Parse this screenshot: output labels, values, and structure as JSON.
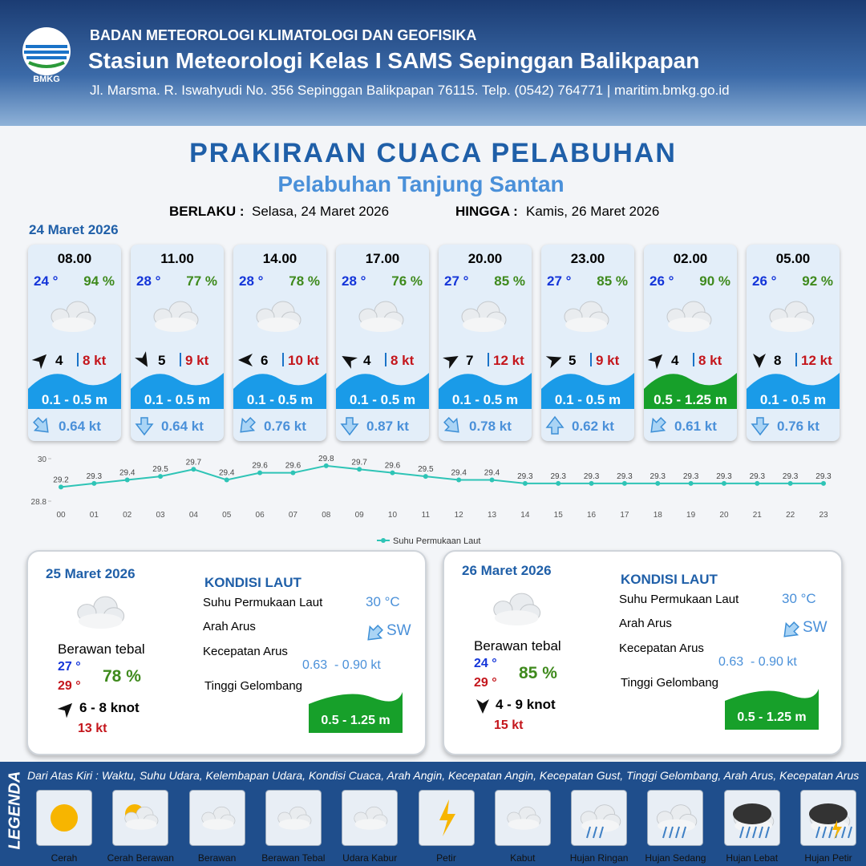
{
  "header": {
    "logo": "BMKG",
    "agency": "BADAN METEOROLOGI KLIMATOLOGI DAN GEOFISIKA",
    "station": "Stasiun Meteorologi Kelas I SAMS Sepinggan Balikpapan",
    "address": "Jl. Marsma. R. Iswahyudi No. 356 Sepinggan Balikpapan 76115. Telp. (0542) 764771 | maritim.bmkg.go.id"
  },
  "title": "PRAKIRAAN CUACA PELABUHAN",
  "subtitle": "Pelabuhan Tanjung Santan",
  "validity": {
    "from_label": "BERLAKU :",
    "from": "Selasa, 24 Maret 2026",
    "to_label": "HINGGA :",
    "to": "Kamis, 26 Maret 2026"
  },
  "day1": {
    "date": "24 Maret 2026",
    "slots": [
      {
        "time": "08.00",
        "temp": "24 °",
        "rh": "94 %",
        "wind": "4",
        "gust": "8 kt",
        "wave": "0.1 - 0.5 m",
        "current": "0.64 kt"
      },
      {
        "time": "11.00",
        "temp": "28 °",
        "rh": "77 %",
        "wind": "5",
        "gust": "9 kt",
        "wave": "0.1 - 0.5 m",
        "current": "0.64 kt"
      },
      {
        "time": "14.00",
        "temp": "28 °",
        "rh": "78 %",
        "wind": "6",
        "gust": "10 kt",
        "wave": "0.1 - 0.5 m",
        "current": "0.76 kt"
      },
      {
        "time": "17.00",
        "temp": "28 °",
        "rh": "76 %",
        "wind": "4",
        "gust": "8 kt",
        "wave": "0.1 - 0.5 m",
        "current": "0.87 kt"
      },
      {
        "time": "20.00",
        "temp": "27 °",
        "rh": "85 %",
        "wind": "7",
        "gust": "12 kt",
        "wave": "0.1 - 0.5 m",
        "current": "0.78 kt"
      },
      {
        "time": "23.00",
        "temp": "27 °",
        "rh": "85 %",
        "wind": "5",
        "gust": "9 kt",
        "wave": "0.1 - 0.5 m",
        "current": "0.62 kt"
      },
      {
        "time": "02.00",
        "temp": "26 °",
        "rh": "90 %",
        "wind": "4",
        "gust": "8 kt",
        "wave": "0.5 - 1.25 m",
        "current": "0.61 kt"
      },
      {
        "time": "05.00",
        "temp": "26 °",
        "rh": "92 %",
        "wind": "8",
        "gust": "12 kt",
        "wave": "0.1 - 0.5 m",
        "current": "0.76 kt"
      }
    ]
  },
  "chart_data": {
    "type": "line",
    "categories": [
      "00",
      "01",
      "02",
      "03",
      "04",
      "05",
      "06",
      "07",
      "08",
      "09",
      "10",
      "11",
      "12",
      "13",
      "14",
      "15",
      "16",
      "17",
      "18",
      "19",
      "20",
      "21",
      "22",
      "23"
    ],
    "series": [
      {
        "name": "Suhu Permukaan Laut",
        "color": "#2ec4b6",
        "values": [
          29.2,
          29.3,
          29.4,
          29.5,
          29.7,
          29.4,
          29.6,
          29.6,
          29.8,
          29.7,
          29.6,
          29.5,
          29.4,
          29.4,
          29.3,
          29.3,
          29.3,
          29.3,
          29.3,
          29.3,
          29.3,
          29.3,
          29.3,
          29.3
        ]
      }
    ],
    "ylim": [
      28.8,
      30
    ],
    "yticks": [
      28.8,
      30
    ],
    "legend": "bottom"
  },
  "days": [
    {
      "date": "25 Maret 2026",
      "condition": "Berawan tebal",
      "tmin": "27 °",
      "tmax": "29 °",
      "rh": "78 %",
      "wind": "6 - 8 knot",
      "gust": "13 kt",
      "sea_title": "KONDISI LAUT",
      "sst_label": "Suhu Permukaan Laut",
      "sst": "30 °C",
      "dir_label": "Arah Arus",
      "dir": "SW",
      "speed_label": "Kecepatan Arus",
      "speed": "0.63  - 0.90 kt",
      "wave_label": "Tinggi Gelombang",
      "wave": "0.5 - 1.25 m"
    },
    {
      "date": "26 Maret 2026",
      "condition": "Berawan tebal",
      "tmin": "24 °",
      "tmax": "29 °",
      "rh": "85 %",
      "wind": "4 - 9 knot",
      "gust": "15 kt",
      "sea_title": "KONDISI LAUT",
      "sst_label": "Suhu Permukaan Laut",
      "sst": "30 °C",
      "dir_label": "Arah Arus",
      "dir": "SW",
      "speed_label": "Kecepatan Arus",
      "speed": "0.63  - 0.90 kt",
      "wave_label": "Tinggi Gelombang",
      "wave": "0.5 - 1.25 m"
    }
  ],
  "legend": {
    "title": "LEGENDA",
    "description": "Dari Atas Kiri : Waktu, Suhu Udara, Kelembapan Udara, Kondisi Cuaca, Arah Angin, Kecepatan Angin, Kecepatan Gust, Tinggi Gelombang, Arah Arus, Kecepatan Arus",
    "items": [
      "Cerah",
      "Cerah Berawan",
      "Berawan",
      "Berawan Tebal",
      "Udara Kabur",
      "Petir",
      "Kabut",
      "Hujan Ringan",
      "Hujan Sedang",
      "Hujan Lebat",
      "Hujan Petir"
    ]
  }
}
